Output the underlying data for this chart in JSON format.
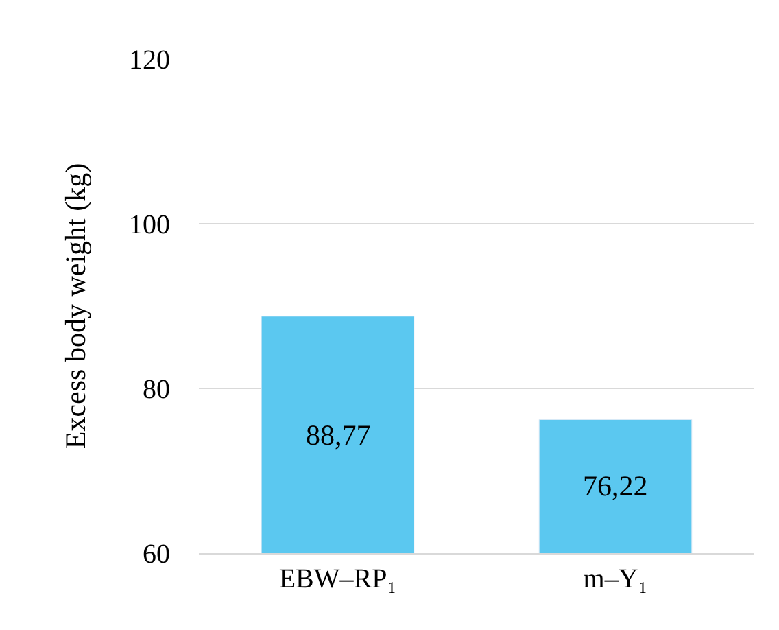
{
  "chart_data": {
    "type": "bar",
    "ylabel": "Excess body weight (kg)",
    "categories": [
      "EBW–RP₁",
      "m–Y₁"
    ],
    "values": [
      88.77,
      76.22
    ],
    "value_labels": [
      "88,77",
      "76,22"
    ],
    "color": "#5bc8f0",
    "ylim": [
      60,
      120
    ],
    "yticks": [
      60,
      80,
      100,
      120
    ],
    "grid": "y"
  }
}
